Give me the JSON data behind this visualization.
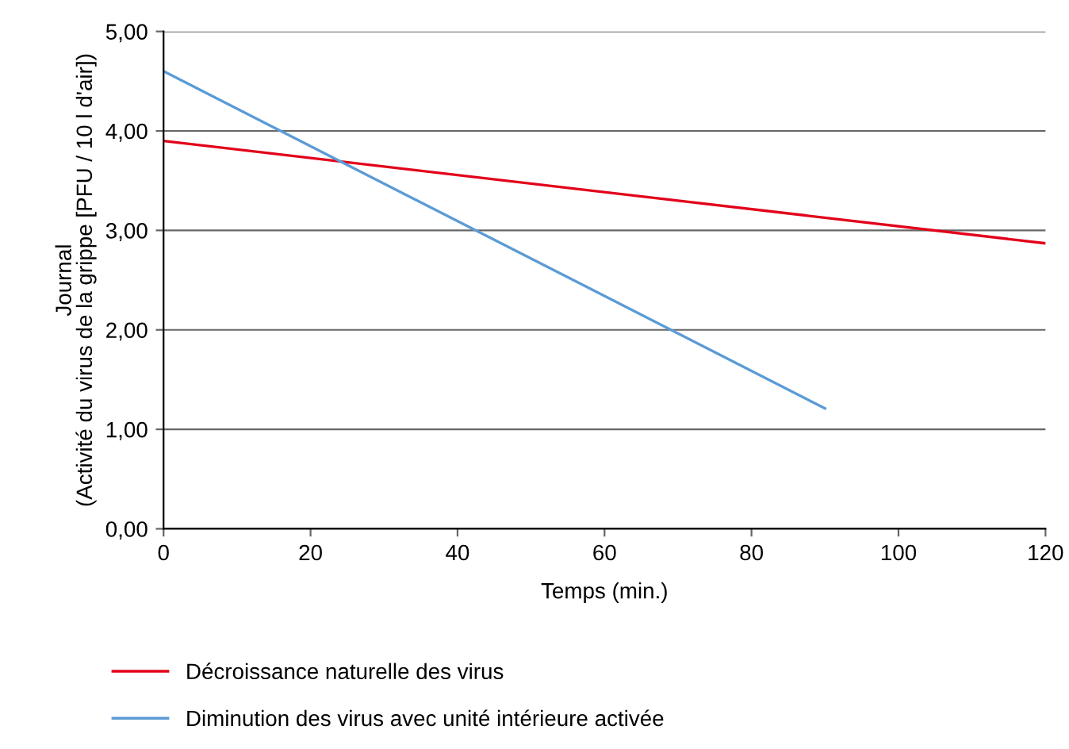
{
  "chart_data": {
    "type": "line",
    "xlabel": "Temps (min.)",
    "ylabel": "Journal\n(Activité du virus de la grippe [PFU / 10 l d'air])",
    "series": [
      {
        "name": "Décroissance naturelle des virus",
        "color": "#e2001a",
        "x": [
          0,
          120
        ],
        "values": [
          3.9,
          2.87
        ]
      },
      {
        "name": "Diminution des virus avec unité intérieure activée",
        "color": "#5b9bd5",
        "x": [
          0,
          90
        ],
        "values": [
          4.6,
          1.21
        ]
      }
    ],
    "xlim": [
      0,
      120
    ],
    "xticks": [
      0,
      20,
      40,
      60,
      80,
      100,
      120
    ],
    "ylim": [
      0,
      5
    ],
    "yticks": [
      {
        "value": 0,
        "label": "0,00"
      },
      {
        "value": 1,
        "label": "1,00"
      },
      {
        "value": 2,
        "label": "2,00"
      },
      {
        "value": 3,
        "label": "3,00"
      },
      {
        "value": 4,
        "label": "4,00"
      },
      {
        "value": 5,
        "label": "5,00"
      }
    ],
    "grid": "y",
    "legend": "bottom left",
    "line_style": "solid",
    "marker": "none"
  }
}
